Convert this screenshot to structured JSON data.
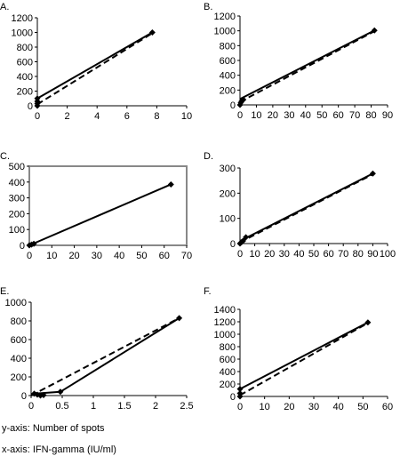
{
  "caption": {
    "y_axis": "y-axis: Number of spots",
    "x_axis": "x-axis: IFN-gamma (IU/ml)"
  },
  "chart_data": [
    {
      "panel": "A.",
      "type": "line",
      "xlim": [
        0,
        10
      ],
      "xticks": [
        0,
        2,
        4,
        6,
        8,
        10
      ],
      "ylim": [
        0,
        1200
      ],
      "yticks": [
        0,
        200,
        400,
        600,
        800,
        1000,
        1200
      ],
      "frame": false,
      "points": [
        [
          0,
          0
        ],
        [
          0,
          30
        ],
        [
          0,
          60
        ],
        [
          0,
          100
        ],
        [
          7.7,
          1000
        ]
      ],
      "solid_line": [
        [
          0,
          100
        ],
        [
          7.7,
          1000
        ]
      ],
      "dashed_line": [
        [
          0,
          20
        ],
        [
          7.7,
          990
        ]
      ]
    },
    {
      "panel": "B.",
      "type": "line",
      "xlim": [
        0,
        90
      ],
      "xticks": [
        0,
        10,
        20,
        30,
        40,
        50,
        60,
        70,
        80,
        90
      ],
      "ylim": [
        0,
        1200
      ],
      "yticks": [
        0,
        200,
        400,
        600,
        800,
        1000,
        1200
      ],
      "frame": false,
      "points": [
        [
          0,
          0
        ],
        [
          0.5,
          30
        ],
        [
          1,
          50
        ],
        [
          2,
          70
        ],
        [
          82,
          1005
        ]
      ],
      "solid_line": [
        [
          0,
          80
        ],
        [
          82,
          1005
        ]
      ],
      "dashed_line": [
        [
          0,
          40
        ],
        [
          82,
          995
        ]
      ]
    },
    {
      "panel": "C.",
      "type": "line",
      "xlim": [
        0,
        70
      ],
      "xticks": [
        0,
        10,
        20,
        30,
        40,
        50,
        60,
        70
      ],
      "ylim": [
        0,
        500
      ],
      "yticks": [
        0,
        100,
        200,
        300,
        400,
        500
      ],
      "frame": true,
      "points": [
        [
          0,
          0
        ],
        [
          1,
          5
        ],
        [
          2,
          10
        ],
        [
          63,
          385
        ]
      ],
      "solid_line": [
        [
          0,
          0
        ],
        [
          63,
          385
        ]
      ],
      "dashed_line": []
    },
    {
      "panel": "D.",
      "type": "line",
      "xlim": [
        0,
        100
      ],
      "xticks": [
        0,
        10,
        20,
        30,
        40,
        50,
        60,
        70,
        80,
        90,
        100
      ],
      "ylim": [
        0,
        300
      ],
      "yticks": [
        0,
        100,
        200,
        300
      ],
      "frame": false,
      "points": [
        [
          0,
          0
        ],
        [
          1,
          5
        ],
        [
          2,
          10
        ],
        [
          4,
          25
        ],
        [
          90,
          278
        ]
      ],
      "solid_line": [
        [
          0,
          10
        ],
        [
          90,
          278
        ]
      ],
      "dashed_line": [
        [
          0,
          5
        ],
        [
          90,
          275
        ]
      ]
    },
    {
      "panel": "E.",
      "type": "line",
      "xlim": [
        0,
        2.5
      ],
      "xticks": [
        0,
        0.5,
        1,
        1.5,
        2,
        2.5
      ],
      "ylim": [
        0,
        1000
      ],
      "yticks": [
        0,
        200,
        400,
        600,
        800,
        1000
      ],
      "frame": false,
      "points": [
        [
          0.05,
          20
        ],
        [
          0.1,
          10
        ],
        [
          0.15,
          0
        ],
        [
          0.2,
          5
        ],
        [
          0.47,
          40
        ],
        [
          2.38,
          830
        ]
      ],
      "solid_line": [
        [
          0.05,
          20
        ],
        [
          0.47,
          40
        ],
        [
          2.38,
          830
        ]
      ],
      "dashed_line": [
        [
          0,
          0
        ],
        [
          2.38,
          830
        ]
      ]
    },
    {
      "panel": "F.",
      "type": "line",
      "xlim": [
        0,
        60
      ],
      "xticks": [
        0,
        10,
        20,
        30,
        40,
        50,
        60
      ],
      "ylim": [
        0,
        1400
      ],
      "yticks": [
        0,
        200,
        400,
        600,
        800,
        1000,
        1200,
        1400
      ],
      "frame": false,
      "points": [
        [
          0,
          0
        ],
        [
          0,
          50
        ],
        [
          0,
          120
        ],
        [
          52,
          1190
        ]
      ],
      "solid_line": [
        [
          0,
          120
        ],
        [
          52,
          1190
        ]
      ],
      "dashed_line": [
        [
          0,
          20
        ],
        [
          52,
          1180
        ]
      ]
    }
  ]
}
